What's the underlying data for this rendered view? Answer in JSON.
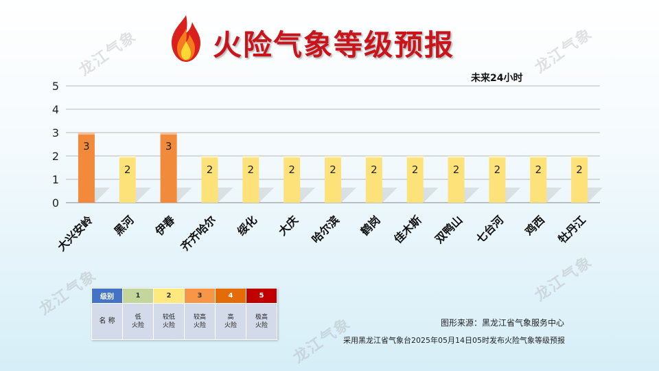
{
  "header": {
    "title": "火险气象等级预报",
    "subtitle": "未来24小时"
  },
  "chart_data": {
    "type": "bar",
    "title": "火险气象等级预报",
    "subtitle": "未来24小时",
    "categories": [
      "大兴安岭",
      "黑河",
      "伊春",
      "齐齐哈尔",
      "绥化",
      "大庆",
      "哈尔滨",
      "鹤岗",
      "佳木斯",
      "双鸭山",
      "七台河",
      "鸡西",
      "牡丹江"
    ],
    "values": [
      3,
      2,
      3,
      2,
      2,
      2,
      2,
      2,
      2,
      2,
      2,
      2,
      2
    ],
    "ylim": [
      0,
      5
    ],
    "yticks": [
      0,
      1,
      2,
      3,
      4,
      5
    ],
    "grid": true,
    "level_colors": {
      "2": "#fde27a",
      "3": "#f28a3c"
    }
  },
  "legend_table": {
    "header_label": "级别",
    "name_label": "名 称",
    "levels": [
      {
        "level": "1",
        "name": "低\n火险",
        "color": "#c3d69b"
      },
      {
        "level": "2",
        "name": "较低\n火险",
        "color": "#ffe97f"
      },
      {
        "level": "3",
        "name": "较高\n火险",
        "color": "#f79646"
      },
      {
        "level": "4",
        "name": "高\n火险",
        "color": "#e36c09"
      },
      {
        "level": "5",
        "name": "极高\n火险",
        "color": "#c00000"
      }
    ]
  },
  "footer": {
    "source": "图形来源：黑龙江省气象服务中心",
    "note": "采用黑龙江省气象台2025年05月14日05时发布火险气象等级预报"
  },
  "watermark_text": "龙江气象",
  "colors": {
    "title": "#c8141a",
    "grid": "#b8b8b8",
    "axis_text": "#222222"
  }
}
